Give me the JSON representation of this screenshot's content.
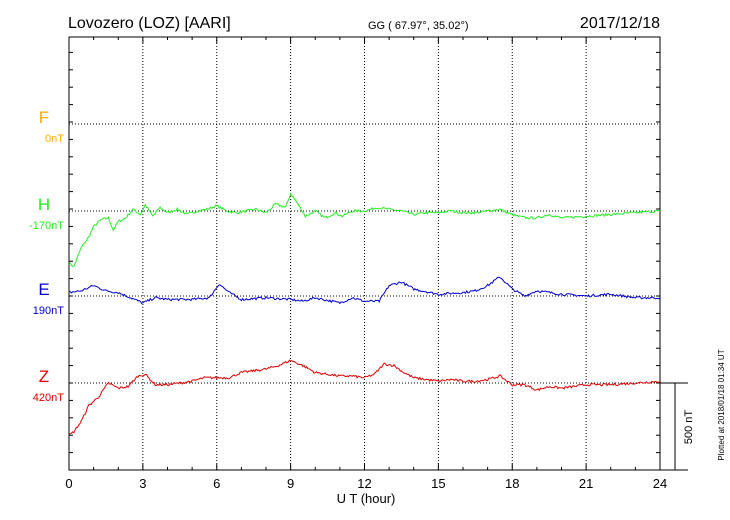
{
  "header": {
    "station": "Lovozero (LOZ)  [AARI]",
    "coords": "GG ( 67.97°,  35.02°)",
    "date": "2017/12/18"
  },
  "side_note": "Plotted at 2018/01/18 01:34 UT",
  "scale_label": "500 nT",
  "colors": {
    "F": "#ffaa00",
    "H": "#22ee22",
    "E": "#0000cc",
    "Z": "#dd0000",
    "grid": "#000000"
  },
  "chart_data": {
    "type": "line",
    "xlabel": "U T (hour)",
    "xlim": [
      0,
      24
    ],
    "xticks": [
      "0",
      "3",
      "6",
      "9",
      "12",
      "15",
      "18",
      "21",
      "24"
    ],
    "scale_nT": 500,
    "series": [
      {
        "name": "F",
        "baseline": "0nT",
        "x": [],
        "y": []
      },
      {
        "name": "H",
        "baseline": "-170nT",
        "x": [
          0,
          0.2,
          0.5,
          0.8,
          1.0,
          1.3,
          1.6,
          1.8,
          2.0,
          2.3,
          2.6,
          2.9,
          3.1,
          3.4,
          3.7,
          4.0,
          4.4,
          4.8,
          5.2,
          5.6,
          6.0,
          6.4,
          6.8,
          7.2,
          7.6,
          8.0,
          8.4,
          8.8,
          9.0,
          9.3,
          9.6,
          10.0,
          10.4,
          10.8,
          11.1,
          11.5,
          12.0,
          12.5,
          13.0,
          13.5,
          14.0,
          14.5,
          15.0,
          15.5,
          16.0,
          16.5,
          17.0,
          17.5,
          17.8,
          18.2,
          18.6,
          19.0,
          19.5,
          20.0,
          21.0,
          22.0,
          23.0,
          24.0
        ],
        "y": [
          -300,
          -320,
          -210,
          -150,
          -90,
          -50,
          -40,
          -110,
          -60,
          -40,
          10,
          -20,
          35,
          -30,
          20,
          -10,
          10,
          -20,
          0,
          10,
          30,
          0,
          -10,
          0,
          10,
          -10,
          40,
          20,
          100,
          40,
          -30,
          0,
          -40,
          -10,
          -30,
          0,
          0,
          20,
          10,
          0,
          -20,
          -10,
          -10,
          0,
          -10,
          -10,
          0,
          10,
          -10,
          -30,
          -40,
          -40,
          -20,
          -40,
          -30,
          -20,
          -10,
          0
        ]
      },
      {
        "name": "E",
        "baseline": "190nT",
        "x": [
          0,
          0.5,
          1.0,
          1.5,
          2.0,
          2.5,
          3.0,
          3.5,
          4.0,
          5.0,
          5.7,
          6.1,
          6.5,
          7.0,
          8.0,
          9.0,
          9.5,
          10.0,
          11.0,
          11.5,
          12.0,
          12.6,
          13.0,
          13.5,
          14.0,
          15.0,
          16.0,
          16.5,
          17.0,
          17.5,
          18.0,
          18.5,
          19.0,
          20.0,
          21.0,
          22.0,
          23.0,
          24.0
        ],
        "y": [
          20,
          30,
          60,
          30,
          20,
          -10,
          -40,
          -10,
          -20,
          -20,
          -10,
          70,
          20,
          -20,
          -10,
          -20,
          -30,
          -10,
          -40,
          -10,
          -30,
          -30,
          60,
          80,
          40,
          10,
          20,
          30,
          60,
          110,
          40,
          0,
          30,
          10,
          0,
          10,
          -10,
          -10
        ]
      },
      {
        "name": "Z",
        "baseline": "420nT",
        "x": [
          0,
          0.2,
          0.5,
          0.8,
          1.2,
          1.6,
          2.0,
          2.4,
          2.8,
          3.1,
          3.5,
          4.0,
          4.5,
          5.0,
          5.5,
          6.0,
          6.5,
          7.0,
          7.5,
          8.0,
          8.5,
          9.0,
          9.5,
          10.0,
          10.5,
          11.0,
          11.5,
          12.0,
          12.4,
          12.8,
          13.2,
          13.6,
          14.0,
          14.5,
          15.0,
          15.5,
          16.0,
          16.5,
          17.0,
          17.5,
          18.0,
          18.5,
          19.0,
          19.5,
          20.0,
          21.0,
          22.0,
          23.0,
          24.0
        ],
        "y": [
          -300,
          -280,
          -220,
          -130,
          -80,
          0,
          -30,
          -20,
          40,
          50,
          -10,
          -10,
          0,
          10,
          30,
          30,
          30,
          60,
          70,
          80,
          100,
          130,
          100,
          60,
          50,
          40,
          40,
          30,
          50,
          110,
          100,
          60,
          30,
          20,
          10,
          20,
          10,
          10,
          20,
          40,
          -10,
          -10,
          -40,
          -20,
          -30,
          -10,
          -10,
          0,
          10
        ]
      }
    ]
  }
}
